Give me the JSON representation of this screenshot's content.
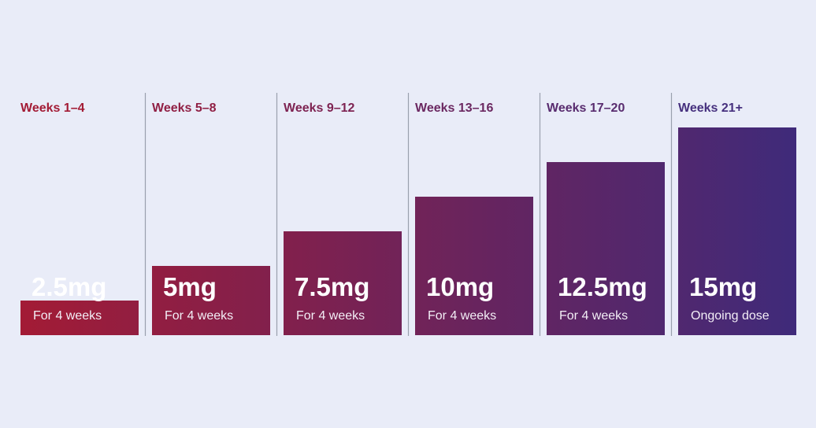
{
  "chart_data": {
    "type": "bar",
    "categories": [
      "Weeks 1–4",
      "Weeks 5–8",
      "Weeks 9–12",
      "Weeks 13–16",
      "Weeks 17–20",
      "Weeks 21+"
    ],
    "values": [
      2.5,
      5,
      7.5,
      10,
      12.5,
      15
    ],
    "value_labels": [
      "2.5mg",
      "5mg",
      "7.5mg",
      "10mg",
      "12.5mg",
      "15mg"
    ],
    "sublabels": [
      "For 4 weeks",
      "For 4 weeks",
      "For 4 weeks",
      "For 4 weeks",
      "For 4 weeks",
      "Ongoing dose"
    ],
    "unit": "mg",
    "ylim": [
      0,
      15
    ],
    "grid": false,
    "legend": "none",
    "colors": {
      "start": "#a31b35",
      "end": "#3f2a7a",
      "label_start": "#a31b35",
      "label_end": "#46307e",
      "divider": "#9aa0ae",
      "background": "#e9ecf8"
    }
  }
}
